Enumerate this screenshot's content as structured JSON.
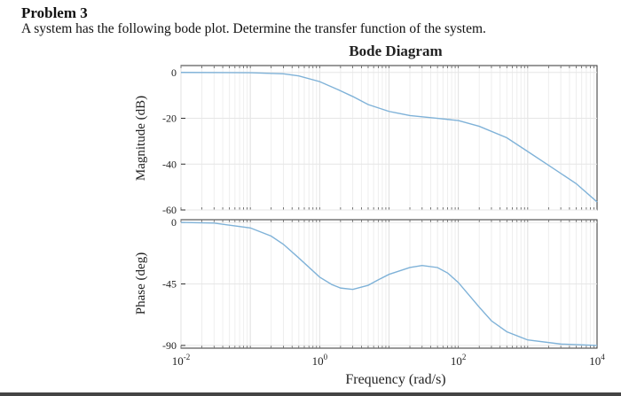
{
  "problem": {
    "title": "Problem 3",
    "statement": "A system has the following bode plot. Determine the transfer function of the system."
  },
  "chart_data": {
    "type": "line",
    "title": "Bode Diagram",
    "xlabel": "Frequency (rad/s)",
    "xscale": "log",
    "xlim": [
      0.01,
      10000
    ],
    "xticks": [
      {
        "value": 0.01,
        "base": "10",
        "exp": "-2"
      },
      {
        "value": 1,
        "base": "10",
        "exp": "0"
      },
      {
        "value": 100,
        "base": "10",
        "exp": "2"
      },
      {
        "value": 10000,
        "base": "10",
        "exp": "4"
      }
    ],
    "grid": true,
    "line_color": "#7fb2d8",
    "magnitude": {
      "ylabel": "Magnitude (dB)",
      "ylim": [
        -60,
        3
      ],
      "yticks": [
        0,
        -20,
        -40,
        -60
      ],
      "ytick_labels": [
        "0",
        "-20",
        "-40",
        "-60"
      ],
      "x": [
        0.01,
        0.1,
        0.3,
        0.5,
        1,
        2,
        3,
        5,
        10,
        20,
        50,
        100,
        200,
        500,
        1000,
        2000,
        5000,
        10000
      ],
      "y": [
        0,
        -0.1,
        -0.6,
        -1.5,
        -4,
        -8,
        -10.5,
        -14,
        -17,
        -18.8,
        -20,
        -21,
        -23.5,
        -28.5,
        -34.5,
        -40.5,
        -48.5,
        -56.5
      ]
    },
    "phase": {
      "ylabel": "Phase (deg)",
      "ylim": [
        -92,
        2
      ],
      "yticks": [
        0,
        -45,
        -90
      ],
      "ytick_labels": [
        "0",
        "-45",
        "-90"
      ],
      "x": [
        0.01,
        0.03,
        0.1,
        0.2,
        0.3,
        0.5,
        1,
        1.5,
        2,
        3,
        5,
        7,
        10,
        20,
        30,
        50,
        70,
        100,
        200,
        300,
        500,
        1000,
        3000,
        10000
      ],
      "y": [
        0,
        -0.5,
        -4,
        -10,
        -16,
        -26,
        -40,
        -45.5,
        -48,
        -49,
        -46,
        -42,
        -38,
        -33,
        -31.5,
        -33,
        -37,
        -44,
        -62,
        -72,
        -80,
        -86,
        -89,
        -90
      ]
    }
  }
}
